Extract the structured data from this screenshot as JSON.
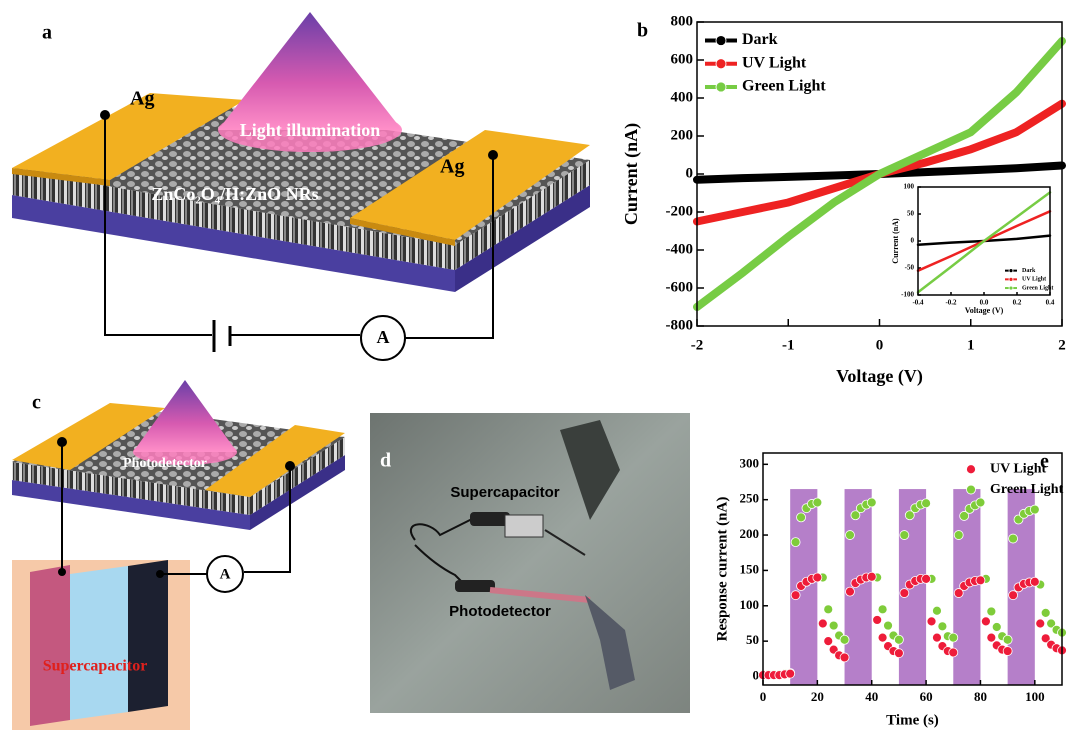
{
  "panel_a": {
    "label": "a",
    "electrode_left": "Ag",
    "electrode_right": "Ag",
    "light": "Light illumination",
    "layer": "ZnCo₂O₄/H:ZnO NRs",
    "meter": "A"
  },
  "panel_c": {
    "label": "c",
    "device": "Photodetector",
    "meter": "A",
    "storage": "Supercapacitor"
  },
  "panel_d": {
    "label": "d",
    "top": "Supercapacitor",
    "bottom": "Photodetector"
  },
  "chart_data": [
    {
      "type": "line",
      "panel_label": "b",
      "x_label": "Voltage (V)",
      "y_label": "Current (nA)",
      "x": [
        -2,
        -1.5,
        -1,
        -0.5,
        0,
        0.5,
        1,
        1.5,
        2
      ],
      "series": [
        {
          "name": "Dark",
          "color": "#000000",
          "values": [
            -30,
            -22,
            -15,
            -8,
            0,
            10,
            20,
            30,
            45
          ]
        },
        {
          "name": "UV Light",
          "color": "#ee2222",
          "values": [
            -250,
            -200,
            -150,
            -75,
            0,
            60,
            130,
            220,
            370
          ]
        },
        {
          "name": "Green Light",
          "color": "#77cc44",
          "values": [
            -700,
            -520,
            -330,
            -150,
            0,
            110,
            220,
            430,
            700
          ]
        }
      ],
      "xlim": [
        -2,
        2
      ],
      "xticks": [
        -2,
        -1,
        0,
        1,
        2
      ],
      "ylim": [
        -800,
        800
      ],
      "yticks": [
        -800,
        -600,
        -400,
        -200,
        0,
        200,
        400,
        600,
        800
      ],
      "legend": "upper left"
    },
    {
      "type": "line",
      "x_label": "Voltage (V)",
      "y_label": "Current (nA)",
      "x": [
        -0.4,
        -0.2,
        0,
        0.2,
        0.4
      ],
      "series": [
        {
          "name": "Dark",
          "color": "#000000",
          "values": [
            -7,
            -3,
            0,
            4,
            10
          ]
        },
        {
          "name": "UV Light",
          "color": "#ee2222",
          "values": [
            -55,
            -28,
            0,
            28,
            55
          ]
        },
        {
          "name": "Green Light",
          "color": "#77cc44",
          "values": [
            -95,
            -48,
            0,
            45,
            90
          ]
        }
      ],
      "xlim": [
        -0.4,
        0.4
      ],
      "xticks": [
        -0.4,
        -0.2,
        {
          "value": 0,
          "label": "0.0"
        },
        0.2,
        0.4
      ],
      "ylim": [
        -100,
        100
      ],
      "yticks": [
        -100,
        -50,
        0,
        50,
        100
      ],
      "legend": "lower right"
    },
    {
      "type": "scatter",
      "panel_label": "e",
      "x_label": "Time (s)",
      "y_label": "Response current (nA)",
      "x": [
        0,
        2,
        4,
        6,
        8,
        10,
        12,
        14,
        16,
        18,
        20,
        22,
        24,
        26,
        28,
        30,
        32,
        34,
        36,
        38,
        40,
        42,
        44,
        46,
        48,
        50,
        52,
        54,
        56,
        58,
        60,
        62,
        64,
        66,
        68,
        70,
        72,
        74,
        76,
        78,
        80,
        82,
        84,
        86,
        88,
        90,
        92,
        94,
        96,
        98,
        100,
        102,
        104,
        106,
        108,
        110
      ],
      "series": [
        {
          "name": "UV Light",
          "color": "#ee1c3a",
          "values": [
            2,
            2,
            2,
            2,
            3,
            4,
            115,
            128,
            134,
            138,
            140,
            75,
            50,
            38,
            30,
            27,
            120,
            132,
            137,
            140,
            141,
            80,
            55,
            43,
            36,
            33,
            118,
            130,
            135,
            138,
            138,
            78,
            55,
            43,
            36,
            34,
            118,
            128,
            133,
            135,
            136,
            78,
            55,
            44,
            38,
            36,
            115,
            126,
            131,
            133,
            134,
            75,
            54,
            45,
            40,
            37
          ]
        },
        {
          "name": "Green Light",
          "color": "#7fcc3a",
          "values": [
            3,
            3,
            3,
            3,
            4,
            5,
            190,
            225,
            238,
            244,
            246,
            140,
            95,
            72,
            58,
            52,
            200,
            228,
            238,
            243,
            246,
            140,
            95,
            72,
            58,
            52,
            200,
            228,
            238,
            243,
            245,
            138,
            93,
            71,
            57,
            55,
            200,
            227,
            237,
            242,
            246,
            138,
            92,
            70,
            57,
            52,
            195,
            222,
            230,
            234,
            236,
            130,
            90,
            75,
            66,
            62
          ]
        }
      ],
      "light_on": [
        [
          10,
          20
        ],
        [
          30,
          40
        ],
        [
          50,
          60
        ],
        [
          70,
          80
        ],
        [
          90,
          100
        ]
      ],
      "shade_top": 265,
      "shade_color": "#b57fc9",
      "xlim": [
        0,
        110
      ],
      "xticks": [
        0,
        20,
        40,
        60,
        80,
        100
      ],
      "ylim": [
        -12,
        316
      ],
      "yticks": [
        0,
        50,
        100,
        150,
        200,
        250,
        300
      ],
      "legend": "upper right"
    }
  ]
}
